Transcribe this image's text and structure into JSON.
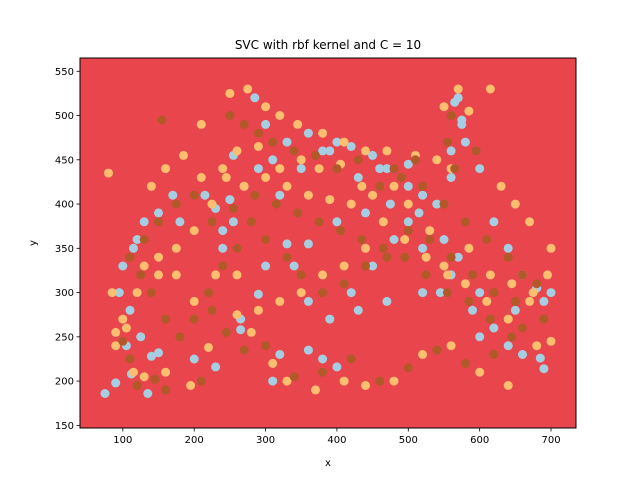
{
  "chart_data": {
    "type": "scatter",
    "title": "SVC with rbf kernel and C = 10",
    "xlabel": "x",
    "ylabel": "y",
    "xlim": [
      40,
      735
    ],
    "ylim": [
      147,
      565
    ],
    "xticks": [
      100,
      200,
      300,
      400,
      500,
      600,
      700
    ],
    "yticks": [
      150,
      200,
      250,
      300,
      350,
      400,
      450,
      500,
      550
    ],
    "background_color": "#e8464c",
    "grid": false,
    "legend": "none",
    "series": [
      {
        "color": "#a6cee3",
        "points": [
          [
            75,
            186
          ],
          [
            90,
            198
          ],
          [
            112,
            208
          ],
          [
            135,
            186
          ],
          [
            150,
            232
          ],
          [
            140,
            228
          ],
          [
            200,
            225
          ],
          [
            230,
            216
          ],
          [
            265,
            258
          ],
          [
            290,
            298
          ],
          [
            310,
            200
          ],
          [
            320,
            230
          ],
          [
            360,
            235
          ],
          [
            380,
            225
          ],
          [
            400,
            216
          ],
          [
            420,
            300
          ],
          [
            450,
            330
          ],
          [
            480,
            360
          ],
          [
            500,
            380
          ],
          [
            520,
            410
          ],
          [
            540,
            400
          ],
          [
            560,
            430
          ],
          [
            575,
            495
          ],
          [
            565,
            515
          ],
          [
            580,
            470
          ],
          [
            600,
            440
          ],
          [
            620,
            380
          ],
          [
            640,
            350
          ],
          [
            660,
            320
          ],
          [
            680,
            305
          ],
          [
            690,
            290
          ],
          [
            660,
            230
          ],
          [
            685,
            226
          ],
          [
            690,
            214
          ],
          [
            700,
            300
          ],
          [
            600,
            300
          ],
          [
            560,
            320
          ],
          [
            520,
            350
          ],
          [
            500,
            420
          ],
          [
            460,
            440
          ],
          [
            430,
            430
          ],
          [
            400,
            470
          ],
          [
            380,
            460
          ],
          [
            350,
            440
          ],
          [
            320,
            410
          ],
          [
            330,
            355
          ],
          [
            360,
            355
          ],
          [
            400,
            380
          ],
          [
            440,
            390
          ],
          [
            475,
            400
          ],
          [
            515,
            390
          ],
          [
            550,
            360
          ],
          [
            570,
            340
          ],
          [
            545,
            300
          ],
          [
            590,
            280
          ],
          [
            620,
            260
          ],
          [
            650,
            280
          ],
          [
            640,
            240
          ],
          [
            600,
            250
          ],
          [
            520,
            300
          ],
          [
            470,
            290
          ],
          [
            430,
            280
          ],
          [
            390,
            270
          ],
          [
            360,
            290
          ],
          [
            340,
            330
          ],
          [
            300,
            330
          ],
          [
            255,
            380
          ],
          [
            240,
            350
          ],
          [
            265,
            270
          ],
          [
            255,
            455
          ],
          [
            285,
            520
          ],
          [
            300,
            490
          ],
          [
            330,
            470
          ],
          [
            360,
            480
          ],
          [
            390,
            460
          ],
          [
            420,
            465
          ],
          [
            450,
            455
          ],
          [
            470,
            440
          ],
          [
            500,
            445
          ],
          [
            560,
            460
          ],
          [
            575,
            490
          ],
          [
            570,
            520
          ],
          [
            120,
            360
          ],
          [
            130,
            380
          ],
          [
            115,
            350
          ],
          [
            100,
            330
          ],
          [
            95,
            300
          ],
          [
            110,
            280
          ],
          [
            125,
            250
          ],
          [
            105,
            240
          ],
          [
            150,
            390
          ],
          [
            170,
            410
          ],
          [
            180,
            380
          ],
          [
            215,
            410
          ],
          [
            230,
            395
          ],
          [
            250,
            405
          ],
          [
            240,
            370
          ],
          [
            270,
            420
          ],
          [
            290,
            440
          ],
          [
            310,
            450
          ]
        ]
      },
      {
        "color": "#fdbf6f",
        "points": [
          [
            80,
            435
          ],
          [
            85,
            300
          ],
          [
            90,
            255
          ],
          [
            100,
            270
          ],
          [
            115,
            210
          ],
          [
            130,
            205
          ],
          [
            160,
            210
          ],
          [
            195,
            195
          ],
          [
            220,
            238
          ],
          [
            260,
            275
          ],
          [
            280,
            255
          ],
          [
            310,
            220
          ],
          [
            330,
            200
          ],
          [
            370,
            190
          ],
          [
            410,
            200
          ],
          [
            440,
            195
          ],
          [
            480,
            200
          ],
          [
            520,
            230
          ],
          [
            560,
            240
          ],
          [
            600,
            210
          ],
          [
            640,
            195
          ],
          [
            680,
            240
          ],
          [
            700,
            245
          ],
          [
            150,
            320
          ],
          [
            175,
            320
          ],
          [
            200,
            290
          ],
          [
            230,
            320
          ],
          [
            210,
            490
          ],
          [
            250,
            525
          ],
          [
            275,
            530
          ],
          [
            300,
            510
          ],
          [
            320,
            500
          ],
          [
            345,
            490
          ],
          [
            380,
            480
          ],
          [
            410,
            470
          ],
          [
            440,
            460
          ],
          [
            470,
            460
          ],
          [
            510,
            455
          ],
          [
            540,
            450
          ],
          [
            560,
            440
          ],
          [
            585,
            505
          ],
          [
            570,
            530
          ],
          [
            550,
            510
          ],
          [
            615,
            530
          ],
          [
            630,
            420
          ],
          [
            650,
            400
          ],
          [
            670,
            380
          ],
          [
            700,
            350
          ],
          [
            695,
            320
          ],
          [
            670,
            290
          ],
          [
            640,
            270
          ],
          [
            610,
            290
          ],
          [
            580,
            310
          ],
          [
            550,
            330
          ],
          [
            530,
            370
          ],
          [
            500,
            400
          ],
          [
            480,
            420
          ],
          [
            450,
            410
          ],
          [
            420,
            400
          ],
          [
            390,
            405
          ],
          [
            360,
            410
          ],
          [
            330,
            420
          ],
          [
            300,
            430
          ],
          [
            270,
            420
          ],
          [
            245,
            430
          ],
          [
            225,
            400
          ],
          [
            200,
            370
          ],
          [
            175,
            350
          ],
          [
            150,
            340
          ],
          [
            130,
            330
          ],
          [
            120,
            300
          ],
          [
            105,
            260
          ],
          [
            90,
            240
          ],
          [
            140,
            420
          ],
          [
            160,
            440
          ],
          [
            185,
            455
          ],
          [
            210,
            430
          ],
          [
            240,
            440
          ],
          [
            260,
            460
          ],
          [
            290,
            465
          ],
          [
            320,
            440
          ],
          [
            350,
            450
          ],
          [
            375,
            440
          ],
          [
            405,
            445
          ],
          [
            435,
            420
          ],
          [
            465,
            380
          ],
          [
            495,
            360
          ],
          [
            525,
            340
          ],
          [
            555,
            320
          ],
          [
            585,
            350
          ],
          [
            615,
            320
          ],
          [
            645,
            310
          ],
          [
            675,
            300
          ],
          [
            440,
            350
          ],
          [
            410,
            330
          ],
          [
            380,
            320
          ],
          [
            350,
            300
          ],
          [
            320,
            290
          ],
          [
            290,
            280
          ],
          [
            260,
            320
          ]
        ]
      },
      {
        "color": "#b15928",
        "points": [
          [
            100,
            245
          ],
          [
            110,
            225
          ],
          [
            120,
            195
          ],
          [
            145,
            202
          ],
          [
            160,
            190
          ],
          [
            210,
            200
          ],
          [
            225,
            280
          ],
          [
            245,
            255
          ],
          [
            270,
            235
          ],
          [
            300,
            240
          ],
          [
            340,
            205
          ],
          [
            380,
            210
          ],
          [
            420,
            225
          ],
          [
            460,
            200
          ],
          [
            500,
            215
          ],
          [
            540,
            235
          ],
          [
            580,
            220
          ],
          [
            620,
            230
          ],
          [
            660,
            260
          ],
          [
            690,
            270
          ],
          [
            155,
            495
          ],
          [
            250,
            500
          ],
          [
            270,
            490
          ],
          [
            290,
            480
          ],
          [
            310,
            470
          ],
          [
            340,
            460
          ],
          [
            370,
            455
          ],
          [
            400,
            440
          ],
          [
            430,
            450
          ],
          [
            460,
            420
          ],
          [
            490,
            430
          ],
          [
            520,
            420
          ],
          [
            550,
            400
          ],
          [
            580,
            380
          ],
          [
            610,
            360
          ],
          [
            640,
            340
          ],
          [
            660,
            320
          ],
          [
            680,
            310
          ],
          [
            650,
            290
          ],
          [
            620,
            300
          ],
          [
            590,
            320
          ],
          [
            560,
            340
          ],
          [
            530,
            360
          ],
          [
            500,
            370
          ],
          [
            470,
            340
          ],
          [
            440,
            330
          ],
          [
            410,
            310
          ],
          [
            380,
            300
          ],
          [
            350,
            320
          ],
          [
            330,
            340
          ],
          [
            300,
            360
          ],
          [
            280,
            380
          ],
          [
            260,
            350
          ],
          [
            240,
            330
          ],
          [
            220,
            300
          ],
          [
            200,
            270
          ],
          [
            180,
            250
          ],
          [
            160,
            270
          ],
          [
            140,
            300
          ],
          [
            125,
            320
          ],
          [
            110,
            340
          ],
          [
            130,
            360
          ],
          [
            150,
            380
          ],
          [
            175,
            400
          ],
          [
            200,
            410
          ],
          [
            225,
            380
          ],
          [
            255,
            395
          ],
          [
            285,
            410
          ],
          [
            315,
            400
          ],
          [
            345,
            390
          ],
          [
            375,
            380
          ],
          [
            405,
            370
          ],
          [
            435,
            360
          ],
          [
            465,
            350
          ],
          [
            495,
            340
          ],
          [
            525,
            320
          ],
          [
            555,
            300
          ],
          [
            585,
            290
          ],
          [
            615,
            270
          ],
          [
            645,
            250
          ],
          [
            565,
            440
          ],
          [
            555,
            470
          ],
          [
            560,
            500
          ],
          [
            595,
            460
          ],
          [
            510,
            450
          ],
          [
            480,
            440
          ]
        ]
      }
    ]
  }
}
